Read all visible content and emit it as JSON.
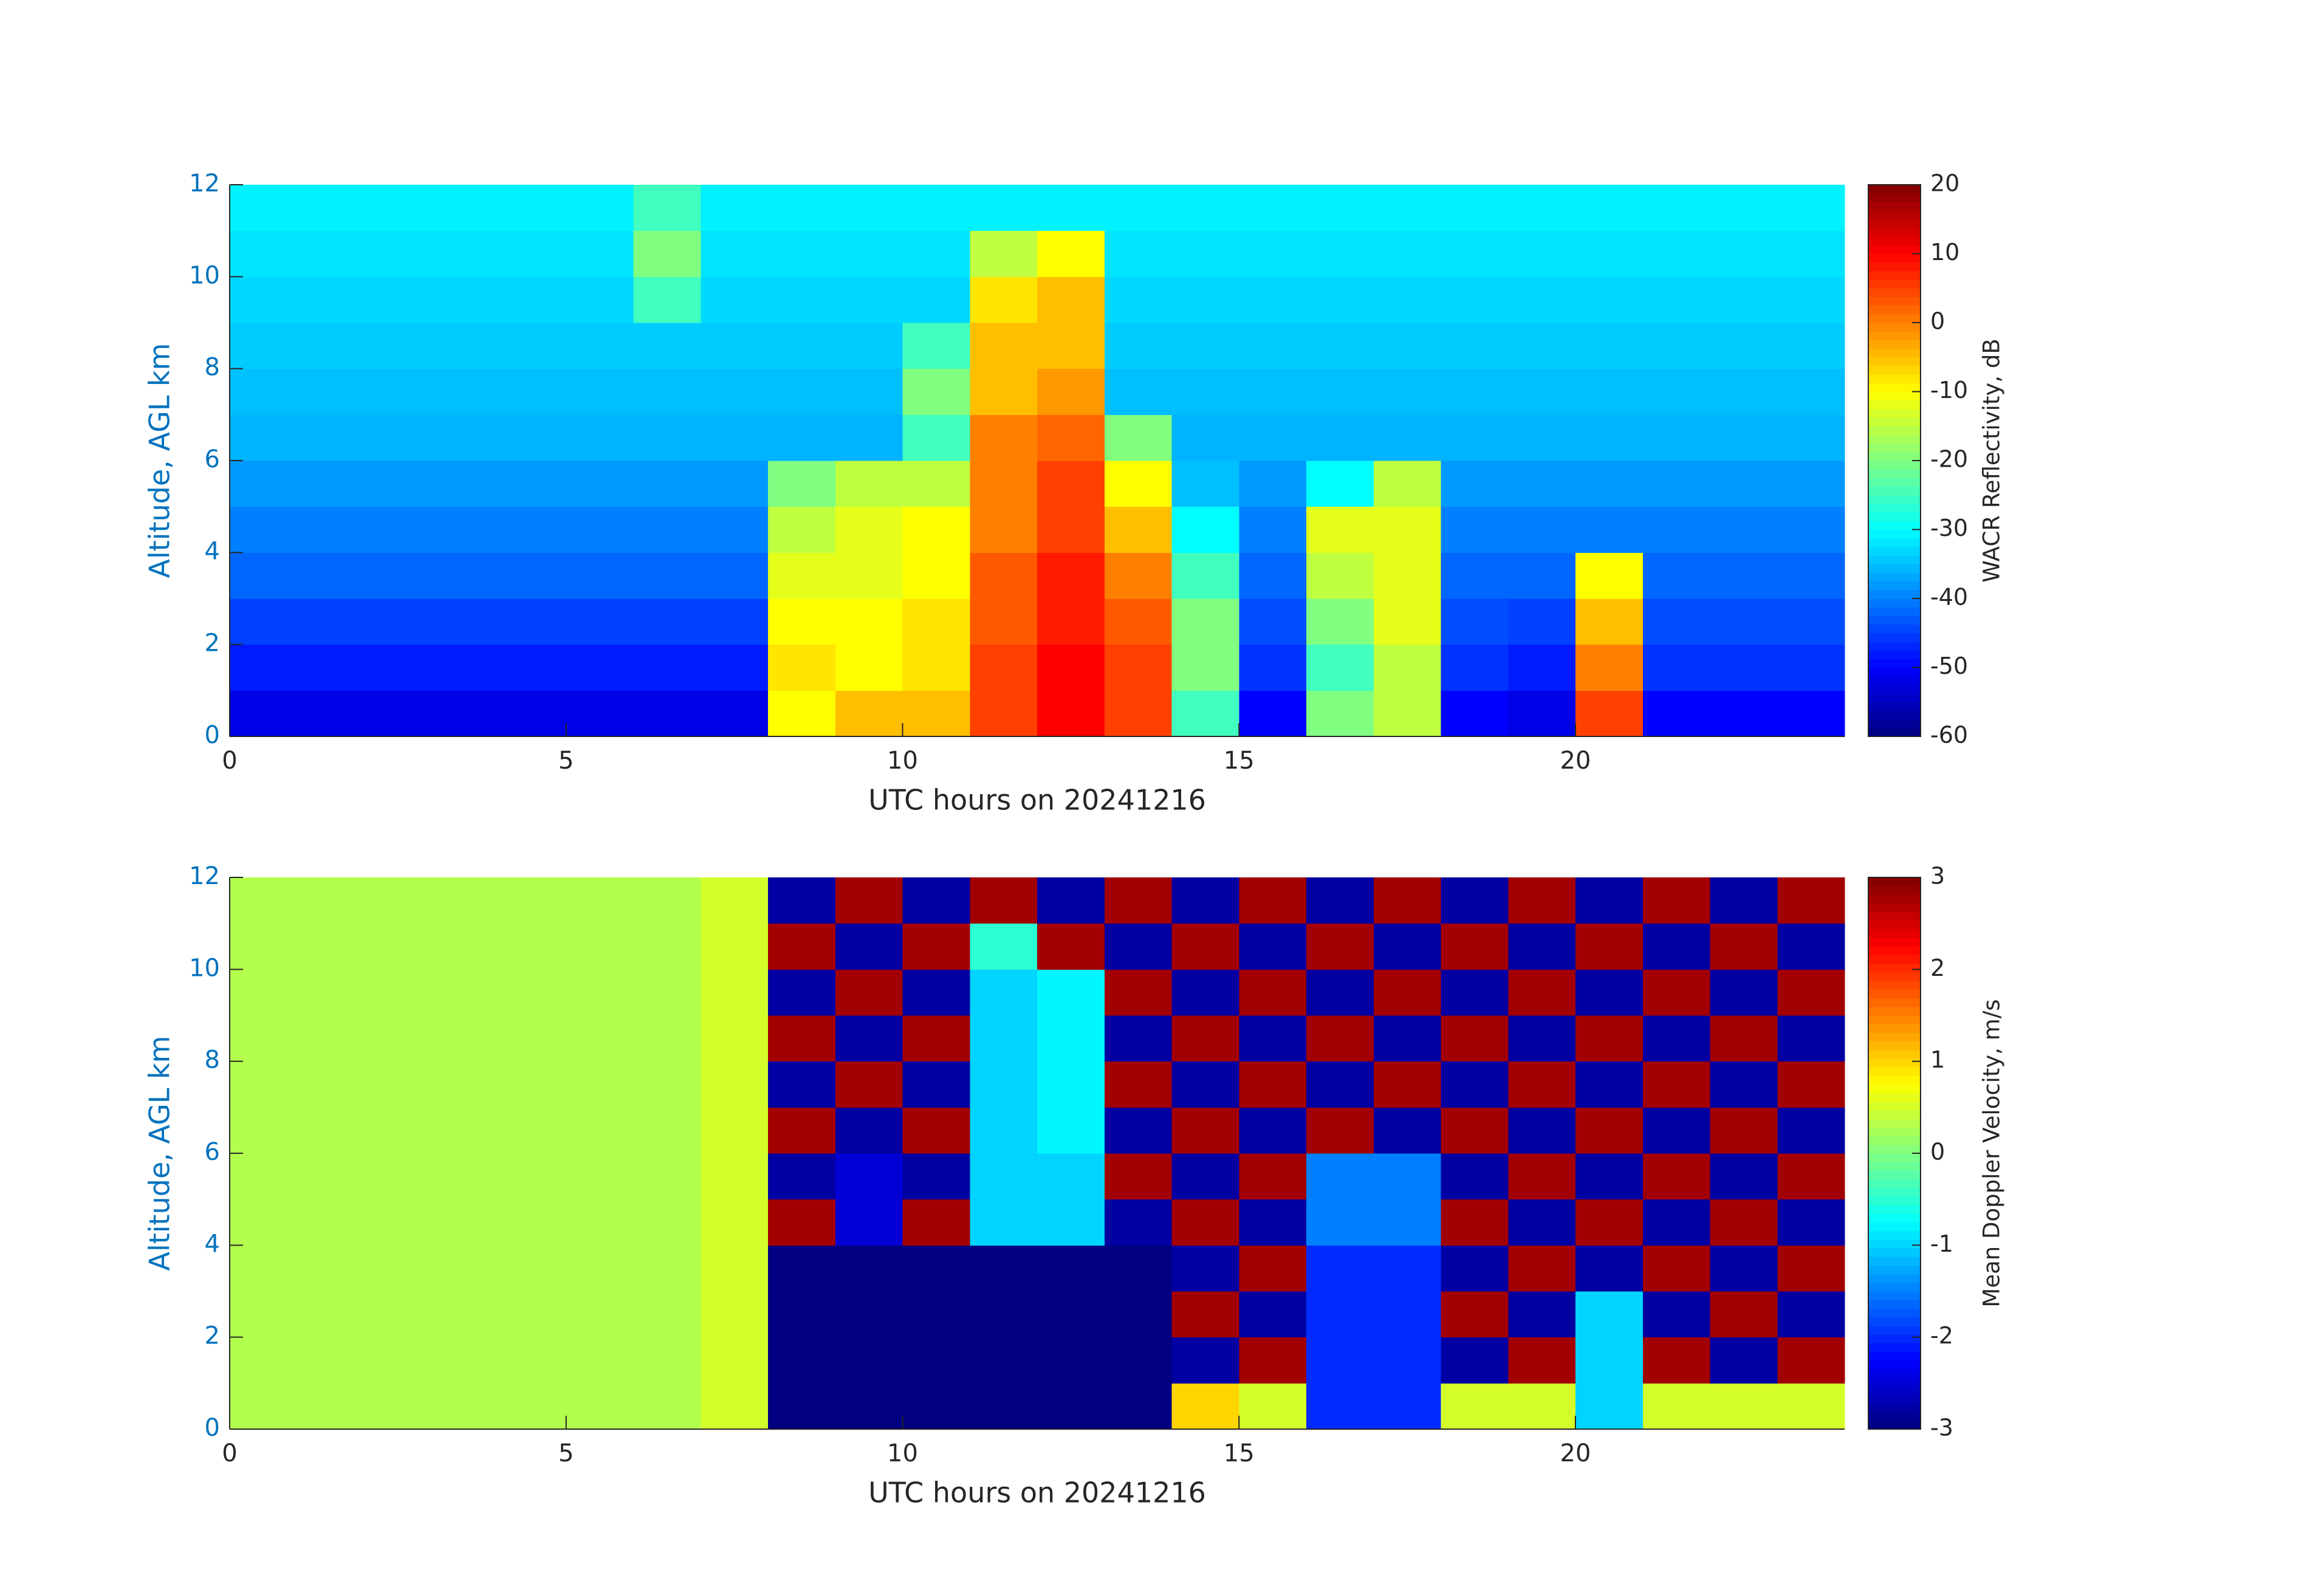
{
  "chart_data": [
    {
      "type": "heatmap",
      "xlabel": "UTC hours on 20241216",
      "ylabel": "Altitude, AGL km",
      "xlim": [
        0,
        24
      ],
      "xticks": [
        0,
        5,
        10,
        15,
        20
      ],
      "ylim": [
        0,
        12
      ],
      "yticks": [
        0,
        2,
        4,
        6,
        8,
        10,
        12
      ],
      "colormap": "jet",
      "clim": [
        -60,
        20
      ],
      "cticks": [
        -60,
        -50,
        -40,
        -30,
        -20,
        -10,
        0,
        10,
        20
      ],
      "clabel": "WACR Reflectivity, dB",
      "ytick_color": "#0072bd",
      "xtick_color": "#262626",
      "z": [
        [
          -52,
          -52,
          -52,
          -52,
          -52,
          -52,
          -52,
          -52,
          -10,
          -5,
          -5,
          5,
          10,
          5,
          -25,
          -50,
          -20,
          -15,
          -50,
          -52,
          5,
          -50,
          -50,
          -50
        ],
        [
          -48,
          -48,
          -48,
          -48,
          -48,
          -48,
          -48,
          -48,
          -8,
          -10,
          -8,
          5,
          10,
          5,
          -20,
          -46,
          -25,
          -15,
          -46,
          -48,
          0,
          -46,
          -46,
          -46
        ],
        [
          -45,
          -45,
          -45,
          -45,
          -45,
          -45,
          -45,
          -45,
          -10,
          -10,
          -8,
          3,
          8,
          3,
          -20,
          -44,
          -20,
          -12,
          -44,
          -45,
          -5,
          -44,
          -44,
          -44
        ],
        [
          -42,
          -42,
          -42,
          -42,
          -42,
          -42,
          -42,
          -42,
          -12,
          -12,
          -10,
          3,
          8,
          0,
          -25,
          -42,
          -15,
          -12,
          -42,
          -42,
          -10,
          -42,
          -42,
          -42
        ],
        [
          -40,
          -40,
          -40,
          -40,
          -40,
          -40,
          -40,
          -40,
          -15,
          -12,
          -10,
          0,
          5,
          -5,
          -30,
          -40,
          -12,
          -12,
          -40,
          -40,
          -40,
          -40,
          -40,
          -40
        ],
        [
          -38,
          -38,
          -38,
          -38,
          -38,
          -38,
          -38,
          -38,
          -20,
          -15,
          -15,
          0,
          5,
          -10,
          -35,
          -38,
          -30,
          -15,
          -38,
          -38,
          -38,
          -38,
          -38,
          -38
        ],
        [
          -36,
          -36,
          -36,
          -36,
          -36,
          -36,
          -36,
          -36,
          -36,
          -36,
          -25,
          0,
          2,
          -20,
          -36,
          -36,
          -36,
          -36,
          -36,
          -36,
          -36,
          -36,
          -36,
          -36
        ],
        [
          -35,
          -35,
          -35,
          -35,
          -35,
          -35,
          -35,
          -35,
          -35,
          -35,
          -20,
          -5,
          -2,
          -35,
          -35,
          -35,
          -35,
          -35,
          -35,
          -35,
          -35,
          -35,
          -35,
          -35
        ],
        [
          -34,
          -34,
          -34,
          -34,
          -34,
          -34,
          -34,
          -34,
          -34,
          -34,
          -25,
          -5,
          -5,
          -34,
          -34,
          -34,
          -34,
          -34,
          -34,
          -34,
          -34,
          -34,
          -34,
          -34
        ],
        [
          -33,
          -33,
          -33,
          -33,
          -33,
          -33,
          -25,
          -33,
          -33,
          -33,
          -33,
          -8,
          -5,
          -33,
          -33,
          -33,
          -33,
          -33,
          -33,
          -33,
          -33,
          -33,
          -33,
          -33
        ],
        [
          -32,
          -32,
          -32,
          -32,
          -32,
          -32,
          -20,
          -32,
          -32,
          -32,
          -32,
          -15,
          -10,
          -32,
          -32,
          -32,
          -32,
          -32,
          -32,
          -32,
          -32,
          -32,
          -32,
          -32
        ],
        [
          -31,
          -31,
          -31,
          -31,
          -31,
          -31,
          -25,
          -31,
          -31,
          -31,
          -31,
          -31,
          -31,
          -31,
          -31,
          -31,
          -31,
          -31,
          -31,
          -31,
          -31,
          -31,
          -31,
          -31
        ]
      ]
    },
    {
      "type": "heatmap",
      "xlabel": "UTC hours on 20241216",
      "ylabel": "Altitude, AGL km",
      "xlim": [
        0,
        24
      ],
      "xticks": [
        0,
        5,
        10,
        15,
        20
      ],
      "ylim": [
        0,
        12
      ],
      "yticks": [
        0,
        2,
        4,
        6,
        8,
        10,
        12
      ],
      "colormap": "jet",
      "clim": [
        -3,
        3
      ],
      "cticks": [
        -3,
        -2,
        -1,
        0,
        1,
        2,
        3
      ],
      "clabel": "Mean Doppler Velocity, m/s",
      "ytick_color": "#0072bd",
      "xtick_color": "#262626",
      "z": [
        [
          0.3,
          0.3,
          0.3,
          0.3,
          0.3,
          0.3,
          0.3,
          0.5,
          -3,
          -3,
          -3,
          -3,
          -3,
          -3,
          1,
          0.5,
          -2,
          -2,
          0.5,
          0.5,
          -1,
          0.5,
          0.5,
          0.5
        ],
        [
          0.3,
          0.3,
          0.3,
          0.3,
          0.3,
          0.3,
          0.3,
          0.5,
          -3,
          -3,
          -3,
          -3,
          -3,
          -3,
          -2.8,
          2.8,
          -2,
          -2,
          -2.8,
          2.8,
          -1,
          2.8,
          -2.8,
          2.8
        ],
        [
          0.3,
          0.3,
          0.3,
          0.3,
          0.3,
          0.3,
          0.3,
          0.5,
          -3,
          -3,
          -3,
          -3,
          -3,
          -3,
          2.8,
          -2.8,
          -2,
          -2,
          2.8,
          -2.8,
          -1,
          -2.8,
          2.8,
          -2.8
        ],
        [
          0.3,
          0.3,
          0.3,
          0.3,
          0.3,
          0.3,
          0.3,
          0.5,
          -3,
          -3,
          -3,
          -3,
          -3,
          -3,
          -2.8,
          2.8,
          -2,
          -2,
          -2.8,
          2.8,
          -2.8,
          2.8,
          -2.8,
          2.8
        ],
        [
          0.3,
          0.3,
          0.3,
          0.3,
          0.3,
          0.3,
          0.3,
          0.5,
          2.8,
          -2.5,
          2.8,
          -1,
          -1,
          -2.8,
          2.8,
          -2.8,
          -1.5,
          -1.5,
          2.8,
          -2.8,
          2.8,
          -2.8,
          2.8,
          -2.8
        ],
        [
          0.3,
          0.3,
          0.3,
          0.3,
          0.3,
          0.3,
          0.3,
          0.5,
          -2.8,
          -2.5,
          -2.8,
          -1,
          -1,
          2.8,
          -2.8,
          2.8,
          -1.5,
          -1.5,
          -2.8,
          2.8,
          -2.8,
          2.8,
          -2.8,
          2.8
        ],
        [
          0.3,
          0.3,
          0.3,
          0.3,
          0.3,
          0.3,
          0.3,
          0.5,
          2.8,
          -2.8,
          2.8,
          -1,
          -0.8,
          -2.8,
          2.8,
          -2.8,
          2.8,
          -2.8,
          2.8,
          -2.8,
          2.8,
          -2.8,
          2.8,
          -2.8
        ],
        [
          0.3,
          0.3,
          0.3,
          0.3,
          0.3,
          0.3,
          0.3,
          0.5,
          -2.8,
          2.8,
          -2.8,
          -1,
          -0.8,
          2.8,
          -2.8,
          2.8,
          -2.8,
          2.8,
          -2.8,
          2.8,
          -2.8,
          2.8,
          -2.8,
          2.8
        ],
        [
          0.3,
          0.3,
          0.3,
          0.3,
          0.3,
          0.3,
          0.3,
          0.5,
          2.8,
          -2.8,
          2.8,
          -1,
          -0.8,
          -2.8,
          2.8,
          -2.8,
          2.8,
          -2.8,
          2.8,
          -2.8,
          2.8,
          -2.8,
          2.8,
          -2.8
        ],
        [
          0.3,
          0.3,
          0.3,
          0.3,
          0.3,
          0.3,
          0.3,
          0.5,
          -2.8,
          2.8,
          -2.8,
          -1,
          -0.8,
          2.8,
          -2.8,
          2.8,
          -2.8,
          2.8,
          -2.8,
          2.8,
          -2.8,
          2.8,
          -2.8,
          2.8
        ],
        [
          0.3,
          0.3,
          0.3,
          0.3,
          0.3,
          0.3,
          0.3,
          0.5,
          2.8,
          -2.8,
          2.8,
          -0.5,
          2.8,
          -2.8,
          2.8,
          -2.8,
          2.8,
          -2.8,
          2.8,
          -2.8,
          2.8,
          -2.8,
          2.8,
          -2.8
        ],
        [
          0.3,
          0.3,
          0.3,
          0.3,
          0.3,
          0.3,
          0.3,
          0.5,
          -2.8,
          2.8,
          -2.8,
          2.8,
          -2.8,
          2.8,
          -2.8,
          2.8,
          -2.8,
          2.8,
          -2.8,
          2.8,
          -2.8,
          2.8,
          -2.8,
          2.8
        ]
      ]
    }
  ]
}
